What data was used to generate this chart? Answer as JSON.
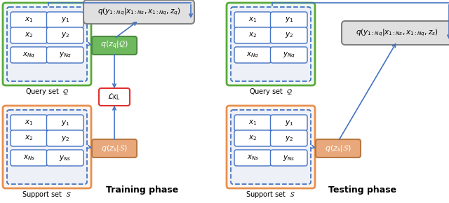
{
  "fig_width": 6.4,
  "fig_height": 2.9,
  "dpi": 100,
  "bg_color": "#ffffff",
  "green_border": "#5aaa3a",
  "orange_border": "#e89050",
  "blue_border": "#4472c4",
  "inner_dash_color": "#4472c4",
  "zq_fill": "#6eb85e",
  "zq_edge": "#4a8a40",
  "zs_fill": "#e8a87c",
  "zs_edge": "#b87840",
  "pred_fill": "#e0e0e0",
  "pred_edge": "#808080",
  "kl_edge": "#e03030",
  "kl_fill": "#ffffff",
  "arrow_color": "#4472c4",
  "cell_edge": "#4472c4",
  "cell_fill": "#ffffff",
  "inner_box_fill": "#eef0f8",
  "outer_query_train_fill": "#f0faf0",
  "outer_support_fill": "#fff5ee",
  "outer_query_test_fill": "#eef4ff",
  "query_label": "Query set  $\\mathcal{Q}$",
  "support_label": "Support set  $\\mathcal{S}$",
  "pred_train_text": "$q(y_{1:Nq}|x_{1:Ns},x_{1:Nq},z_q)$",
  "pred_test_text": "$q(y_{1:Nq}|x_{1:Ns},x_{1:Nq},z_s)$",
  "zq_text": "$q(z_q|\\mathcal{Q})$",
  "zs_text": "$q(z_s|\\mathcal{S})$",
  "kl_text": "$\\mathcal{L}_{\\mathrm{KL}}$",
  "training_label": "Training phase",
  "testing_label": "Testing phase",
  "row1": [
    [
      "$x_1$",
      "$y_1$"
    ],
    [
      "$x_1$",
      "$y_1$"
    ]
  ],
  "row2": [
    [
      "$x_2$",
      "$y_2$"
    ],
    [
      "$x_2$",
      "$y_2$"
    ]
  ],
  "row3_q": [
    [
      "$x_{Nq}$",
      "$y_{Nq}$"
    ],
    [
      "$x_{Nq}$",
      "$y_{Nq}$"
    ]
  ],
  "row3_s": [
    [
      "$x_{Ns}$",
      "$y_{Ns}$"
    ],
    [
      "$x_{Ns}$",
      "$y_{Ns}$"
    ]
  ]
}
